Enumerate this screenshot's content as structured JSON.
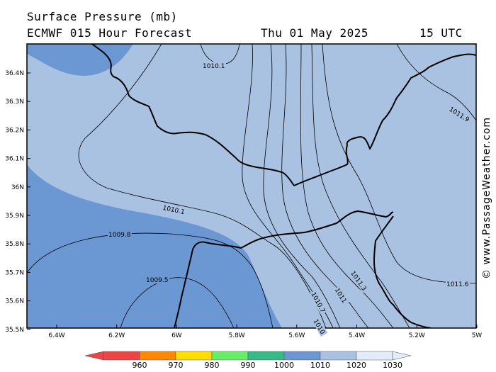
{
  "header": {
    "title": "Surface Pressure (mb)",
    "model": "ECMWF 015 Hour Forecast",
    "date": "Thu 01 May 2025",
    "time": "15 UTC"
  },
  "credit": "© www.PassageWeather.com",
  "axes": {
    "lat_ticks": [
      "36.4N",
      "36.3N",
      "36.2N",
      "36.1N",
      "36N",
      "35.9N",
      "35.8N",
      "35.7N",
      "35.6N",
      "35.5N"
    ],
    "lon_ticks": [
      "6.4W",
      "6.2W",
      "6W",
      "5.8W",
      "5.6W",
      "5.4W",
      "5.2W",
      "5W"
    ]
  },
  "isobar_labels": [
    "1010.1",
    "1010.1",
    "1009.8",
    "1009.5",
    "1010.7",
    "1011",
    "1011.3",
    "1011.6",
    "1011.9",
    "1010"
  ],
  "colorbar": {
    "labels": [
      "960",
      "970",
      "980",
      "990",
      "1000",
      "1010",
      "1020",
      "1030"
    ],
    "colors": [
      "#ee4444",
      "#ff8800",
      "#ffdd00",
      "#66ee66",
      "#33bb88",
      "#6b97d3",
      "#a9c2e2",
      "#e4ecf7"
    ]
  },
  "fill_colors": {
    "low": "#6b97d3",
    "mid": "#a9c2e2",
    "frame": "#000000"
  }
}
